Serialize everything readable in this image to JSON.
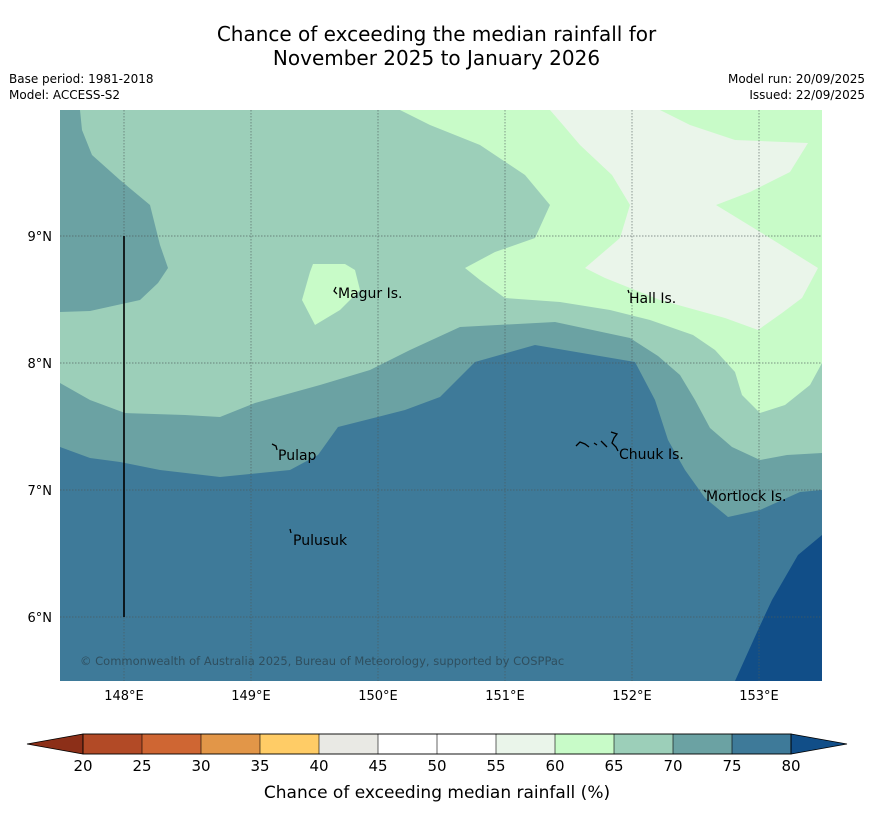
{
  "title": {
    "line1": "Chance of exceeding the median rainfall for",
    "line2": "November 2025 to January 2026"
  },
  "meta": {
    "base_period": "Base period: 1981-2018",
    "model": "Model: ACCESS-S2",
    "model_run": "Model run: 20/09/2025",
    "issued": "Issued: 22/09/2025"
  },
  "map": {
    "lat_labels": [
      "9°N",
      "8°N",
      "7°N",
      "6°N"
    ],
    "lon_labels": [
      "148°E",
      "149°E",
      "150°E",
      "151°E",
      "152°E",
      "153°E"
    ],
    "places": {
      "magur": "Magur Is.",
      "hall": "Hall Is.",
      "pulap": "Pulap",
      "chuuk": "Chuuk Is.",
      "mortlock": "Mortlock Is.",
      "pulusuk": "Pulusuk"
    },
    "copyright": "© Commonwealth of Australia 2025, Bureau of Meteorology, supported by COSPPac"
  },
  "colorbar": {
    "title": "Chance of exceeding median rainfall (%)",
    "ticks": [
      "20",
      "25",
      "30",
      "35",
      "40",
      "45",
      "50",
      "55",
      "60",
      "65",
      "70",
      "75",
      "80"
    ],
    "colors": [
      "#b24a26",
      "#cf6633",
      "#e29648",
      "#ffcc66",
      "#e9e9e4",
      "#ffffff",
      "#ffffff",
      "#eaf5ea",
      "#c8fbc8",
      "#9ccfb9",
      "#6ba2a3",
      "#3e7a99",
      "#114e88"
    ],
    "low_color": "#8c2f18",
    "high_color": "#114e88"
  }
}
